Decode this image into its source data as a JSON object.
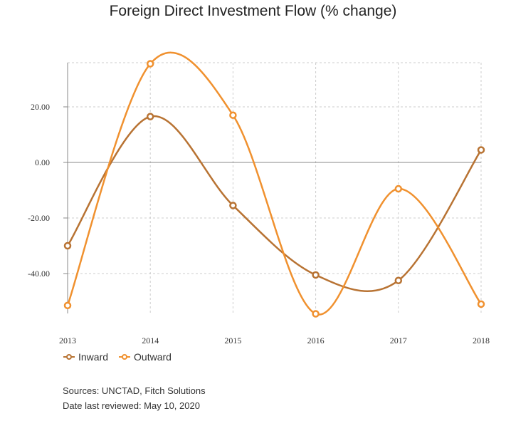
{
  "chart_data": {
    "type": "line",
    "title": "Foreign Direct Investment Flow (% change)",
    "categories": [
      "2013",
      "2014",
      "2015",
      "2016",
      "2017",
      "2018"
    ],
    "y_ticks": [
      "20.00",
      "0.00",
      "-20.00",
      "-40.00"
    ],
    "ylim": [
      -55,
      36
    ],
    "grid": true,
    "legend_position": "bottom-left",
    "series": [
      {
        "name": "Inward",
        "color": "#b87333",
        "values": [
          -30,
          16.5,
          -15.5,
          -40.5,
          -42.5,
          4.5
        ]
      },
      {
        "name": "Outward",
        "color": "#f0912f",
        "values": [
          -51.5,
          35.5,
          17,
          -54.5,
          -9.5,
          -51
        ]
      }
    ]
  },
  "notes": {
    "source": "Sources: UNCTAD, Fitch Solutions",
    "reviewed": "Date last reviewed: May 10, 2020"
  }
}
